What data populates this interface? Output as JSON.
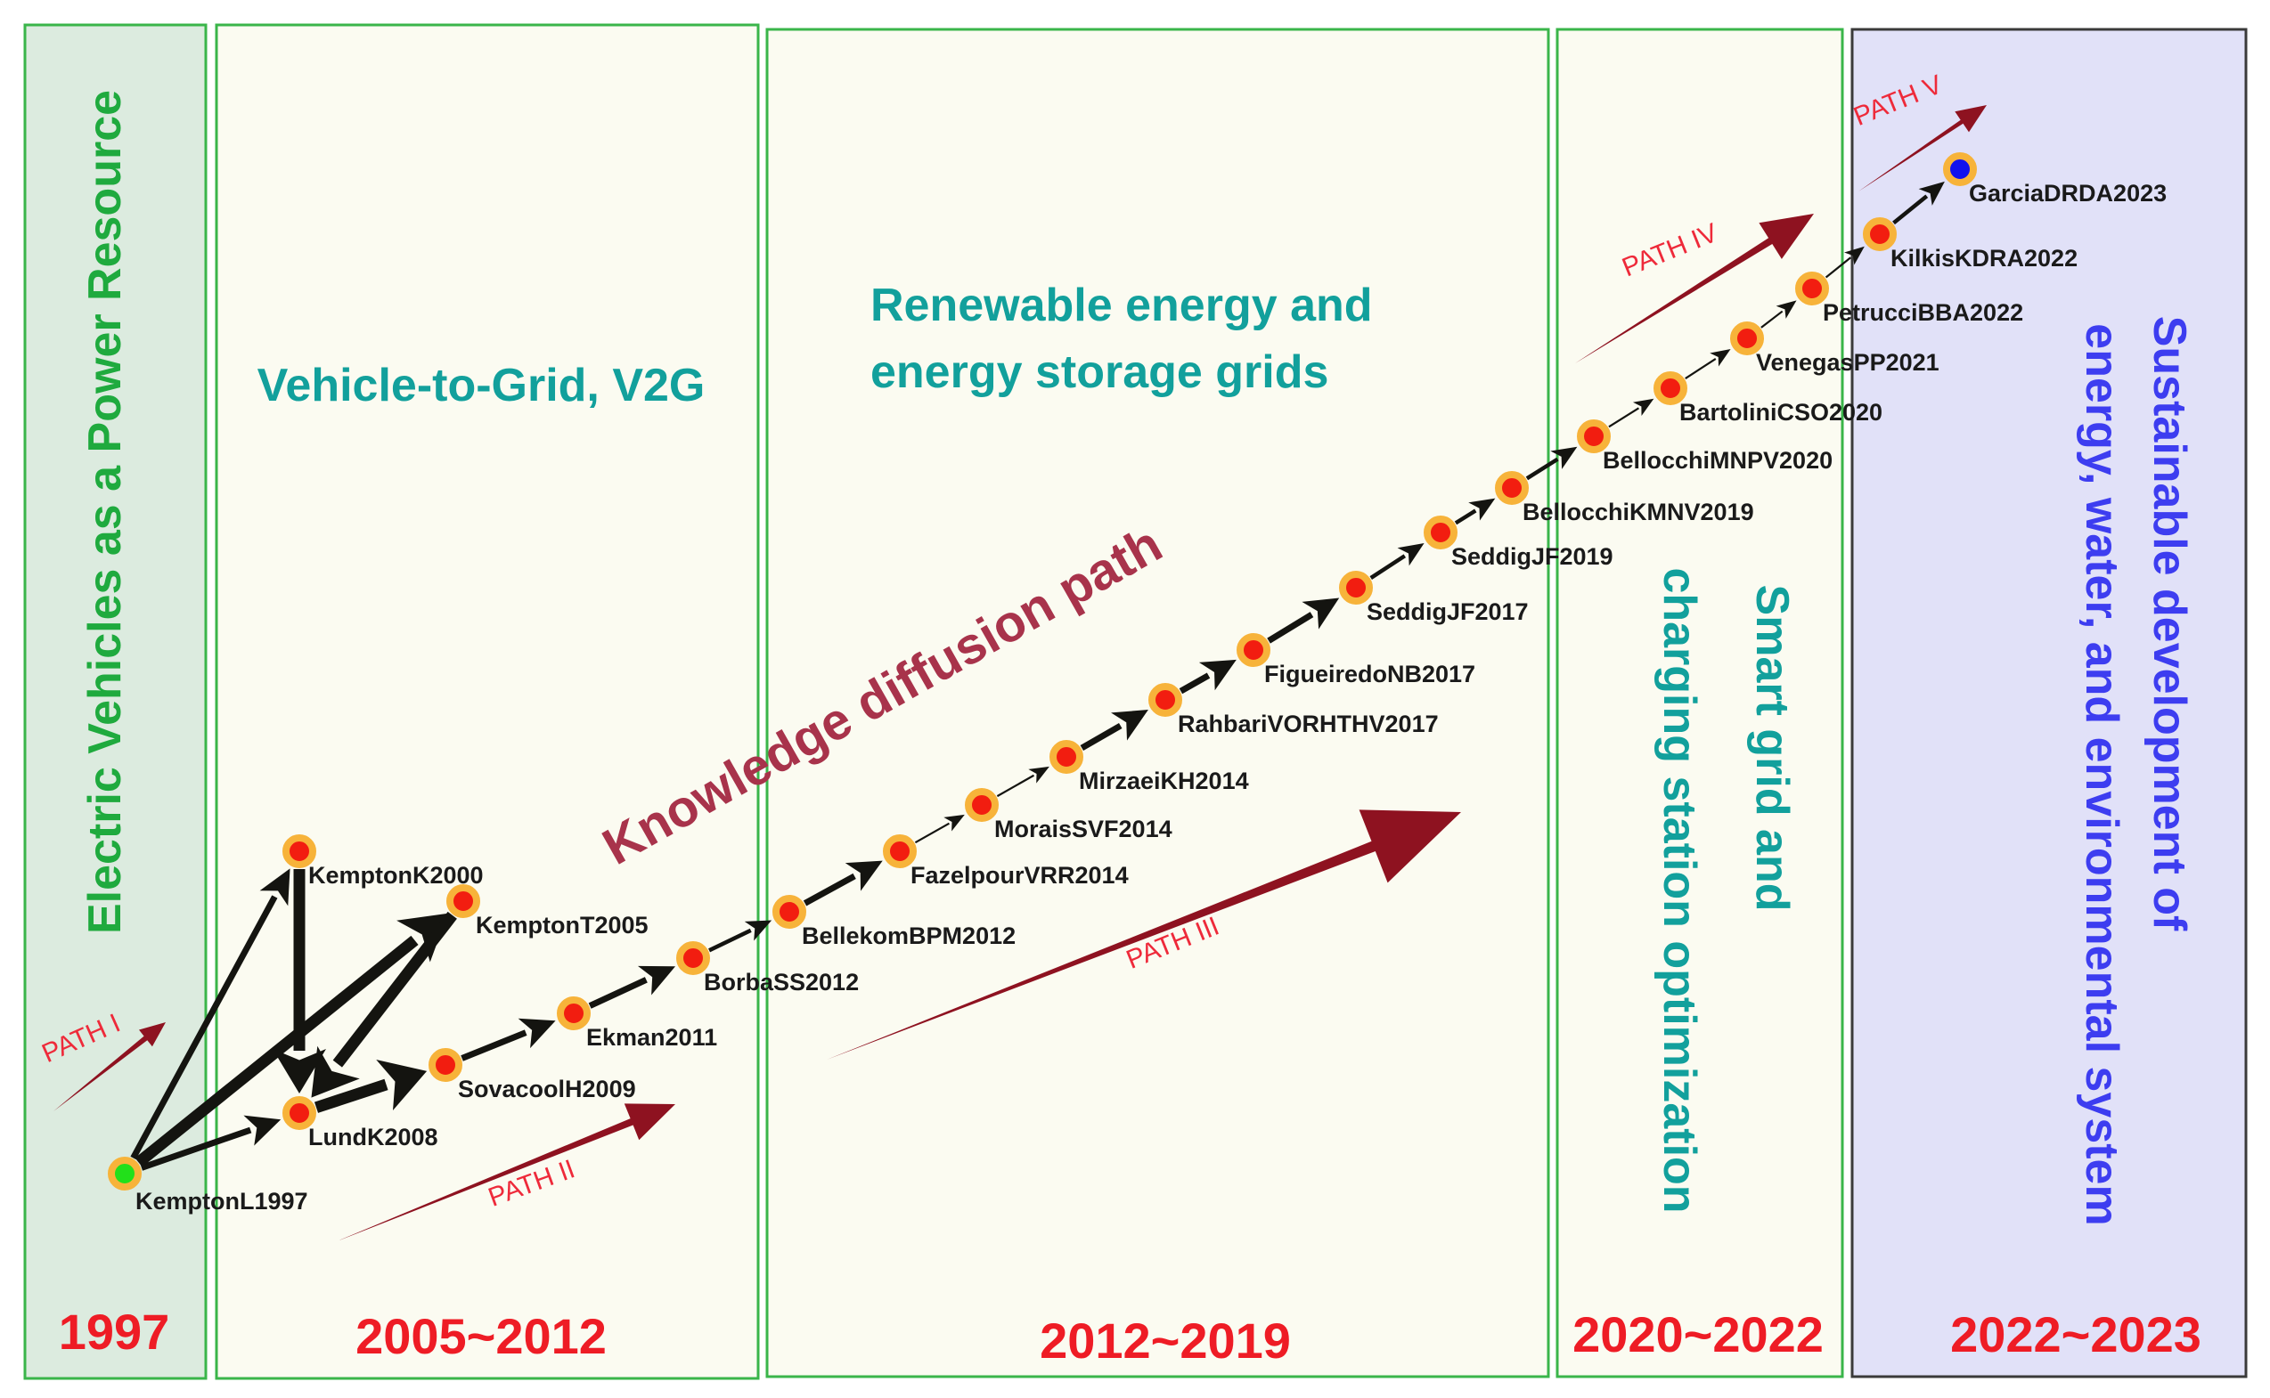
{
  "periods": [
    {
      "id": "p1997",
      "year": "1997",
      "fill": "#dcebdf",
      "stroke": "#3ab54a"
    },
    {
      "id": "p2005",
      "year": "2005~2012",
      "fill": "#fbfbf1",
      "stroke": "#3ab54a"
    },
    {
      "id": "p2012",
      "year": "2012~2019",
      "fill": "#fbfbf1",
      "stroke": "#3ab54a"
    },
    {
      "id": "p2020",
      "year": "2020~2022",
      "fill": "#fbfbf1",
      "stroke": "#3ab54a"
    },
    {
      "id": "p2022",
      "year": "2022~2023",
      "fill": "#e1e1f8",
      "stroke": "#3a3a3a"
    }
  ],
  "themes": {
    "ev_power_resource": "Electric Vehicles as a Power Resource",
    "v2g": "Vehicle-to-Grid, V2G",
    "renewable_line1": "Renewable energy and",
    "renewable_line2": "energy storage grids",
    "smart_grid_line1": "Smart grid and",
    "smart_grid_line2": "charging station optimization",
    "sustainable_line1": "Sustainable development of",
    "sustainable_line2": "energy, water, and environmental system"
  },
  "main_annotation": "Knowledge diffusion path",
  "paths": [
    "PATH  I",
    "PATH  II",
    "PATH  III",
    "PATH  IV",
    "PATH  V"
  ],
  "nodes": [
    {
      "id": "KemptonL1997",
      "label": "KemptonL1997",
      "kind": "origin"
    },
    {
      "id": "KemptonK2000",
      "label": "KemptonK2000",
      "kind": "paper"
    },
    {
      "id": "LundK2008",
      "label": "LundK2008",
      "kind": "paper"
    },
    {
      "id": "KemptonT2005",
      "label": "KemptonT2005",
      "kind": "paper"
    },
    {
      "id": "SovacoolH2009",
      "label": "SovacoolH2009",
      "kind": "paper"
    },
    {
      "id": "Ekman2011",
      "label": "Ekman2011",
      "kind": "paper"
    },
    {
      "id": "BorbaSS2012",
      "label": "BorbaSS2012",
      "kind": "paper"
    },
    {
      "id": "BellekomBPM2012",
      "label": "BellekomBPM2012",
      "kind": "paper"
    },
    {
      "id": "FazelpourVRR2014",
      "label": "FazelpourVRR2014",
      "kind": "paper"
    },
    {
      "id": "MoraisSVF2014",
      "label": "MoraisSVF2014",
      "kind": "paper"
    },
    {
      "id": "MirzaeiKH2014",
      "label": "MirzaeiKH2014",
      "kind": "paper"
    },
    {
      "id": "RahbariVORHTHV2017",
      "label": "RahbariVORHTHV2017",
      "kind": "paper"
    },
    {
      "id": "FigueiredoNB2017",
      "label": "FigueiredoNB2017",
      "kind": "paper"
    },
    {
      "id": "SeddigJF2017",
      "label": "SeddigJF2017",
      "kind": "paper"
    },
    {
      "id": "SeddigJF2019",
      "label": "SeddigJF2019",
      "kind": "paper"
    },
    {
      "id": "BellocchiKMNV2019",
      "label": "BellocchiKMNV2019",
      "kind": "paper"
    },
    {
      "id": "BellocchiMNPV2020",
      "label": "BellocchiMNPV2020",
      "kind": "paper"
    },
    {
      "id": "BartoliniCSO2020",
      "label": "BartoliniCSO2020",
      "kind": "paper"
    },
    {
      "id": "VenegasPP2021",
      "label": "VenegasPP2021",
      "kind": "paper"
    },
    {
      "id": "PetrucciBBA2022",
      "label": "PetrucciBBA2022",
      "kind": "paper"
    },
    {
      "id": "KilkisKDRA2022",
      "label": "KilkisKDRA2022",
      "kind": "paper"
    },
    {
      "id": "GarciaDRDA2023",
      "label": "GarciaDRDA2023",
      "kind": "latest"
    }
  ],
  "edges": [
    {
      "from": "KemptonL1997",
      "to": "KemptonK2000",
      "weight": "medium"
    },
    {
      "from": "KemptonL1997",
      "to": "LundK2008",
      "weight": "medium"
    },
    {
      "from": "KemptonL1997",
      "to": "KemptonT2005",
      "weight": "heavy"
    },
    {
      "from": "KemptonK2000",
      "to": "LundK2008",
      "weight": "heavy"
    },
    {
      "from": "KemptonT2005",
      "to": "LundK2008",
      "weight": "heavy"
    },
    {
      "from": "LundK2008",
      "to": "SovacoolH2009",
      "weight": "heavy"
    },
    {
      "from": "SovacoolH2009",
      "to": "Ekman2011",
      "weight": "medium"
    },
    {
      "from": "Ekman2011",
      "to": "BorbaSS2012",
      "weight": "medium"
    },
    {
      "from": "BorbaSS2012",
      "to": "BellekomBPM2012",
      "weight": "light"
    },
    {
      "from": "BellekomBPM2012",
      "to": "FazelpourVRR2014",
      "weight": "medium"
    },
    {
      "from": "FazelpourVRR2014",
      "to": "MoraisSVF2014",
      "weight": "thin"
    },
    {
      "from": "MoraisSVF2014",
      "to": "MirzaeiKH2014",
      "weight": "thin"
    },
    {
      "from": "MirzaeiKH2014",
      "to": "RahbariVORHTHV2017",
      "weight": "medium"
    },
    {
      "from": "RahbariVORHTHV2017",
      "to": "FigueiredoNB2017",
      "weight": "medium"
    },
    {
      "from": "FigueiredoNB2017",
      "to": "SeddigJF2017",
      "weight": "medium"
    },
    {
      "from": "SeddigJF2017",
      "to": "SeddigJF2019",
      "weight": "light"
    },
    {
      "from": "SeddigJF2019",
      "to": "BellocchiKMNV2019",
      "weight": "light"
    },
    {
      "from": "BellocchiKMNV2019",
      "to": "BellocchiMNPV2020",
      "weight": "light"
    },
    {
      "from": "BellocchiMNPV2020",
      "to": "BartoliniCSO2020",
      "weight": "thin"
    },
    {
      "from": "BartoliniCSO2020",
      "to": "VenegasPP2021",
      "weight": "thin"
    },
    {
      "from": "VenegasPP2021",
      "to": "PetrucciBBA2022",
      "weight": "thin"
    },
    {
      "from": "PetrucciBBA2022",
      "to": "KilkisKDRA2022",
      "weight": "thin"
    },
    {
      "from": "KilkisKDRA2022",
      "to": "GarciaDRDA2023",
      "weight": "light"
    }
  ],
  "colors": {
    "node_fill": "#f21d10",
    "node_ring": "#f7b33a",
    "origin_fill": "#22e01a",
    "latest_fill": "#1111ee",
    "edge": "#141410",
    "path_arrow": "#8e1220",
    "theme_green": "#1faa3e",
    "theme_teal": "#12a09c",
    "theme_blue": "#3d3df0",
    "annotation": "#a8334b",
    "year_red": "#ee1c25"
  }
}
